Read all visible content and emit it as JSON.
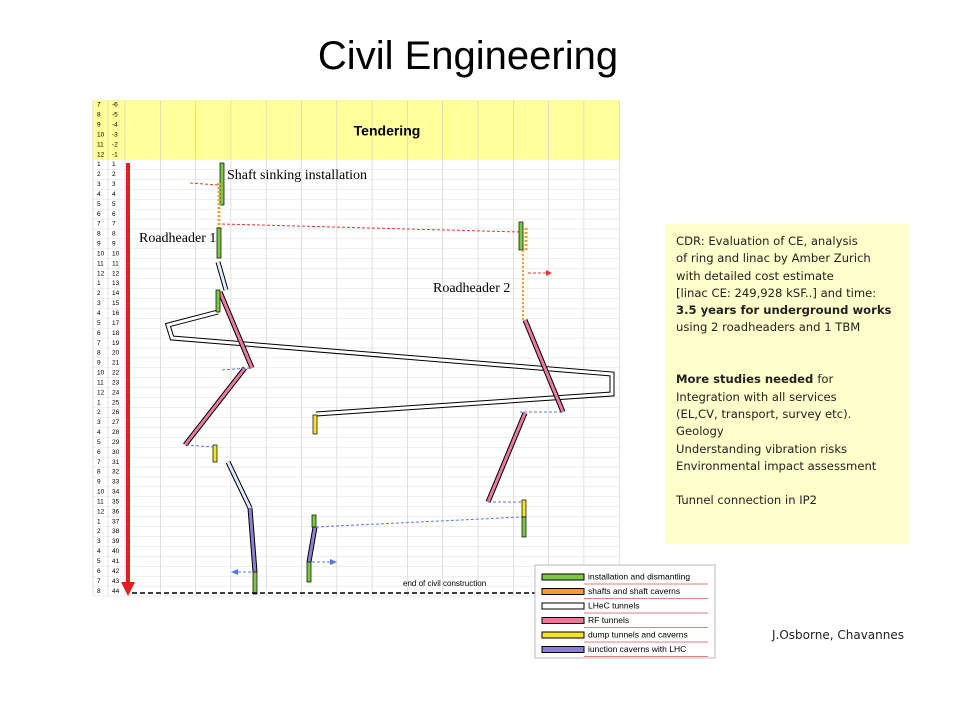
{
  "title": "Civil Engineering",
  "schedule": {
    "tendering_label": "Tendering",
    "rows": [
      {
        "month": "7",
        "index": "-6"
      },
      {
        "month": "8",
        "index": "-5"
      },
      {
        "month": "9",
        "index": "-4"
      },
      {
        "month": "10",
        "index": "-3"
      },
      {
        "month": "11",
        "index": "-2"
      },
      {
        "month": "12",
        "index": "-1"
      },
      {
        "month": "1",
        "index": "1"
      },
      {
        "month": "2",
        "index": "2"
      },
      {
        "month": "3",
        "index": "3"
      },
      {
        "month": "4",
        "index": "4"
      },
      {
        "month": "5",
        "index": "5"
      },
      {
        "month": "6",
        "index": "6"
      },
      {
        "month": "7",
        "index": "7"
      },
      {
        "month": "8",
        "index": "8"
      },
      {
        "month": "9",
        "index": "9"
      },
      {
        "month": "10",
        "index": "10"
      },
      {
        "month": "11",
        "index": "11"
      },
      {
        "month": "12",
        "index": "12"
      },
      {
        "month": "1",
        "index": "13"
      },
      {
        "month": "2",
        "index": "14"
      },
      {
        "month": "3",
        "index": "15"
      },
      {
        "month": "4",
        "index": "16"
      },
      {
        "month": "5",
        "index": "17"
      },
      {
        "month": "6",
        "index": "18"
      },
      {
        "month": "7",
        "index": "19"
      },
      {
        "month": "8",
        "index": "20"
      },
      {
        "month": "9",
        "index": "21"
      },
      {
        "month": "10",
        "index": "22"
      },
      {
        "month": "11",
        "index": "23"
      },
      {
        "month": "12",
        "index": "24"
      },
      {
        "month": "1",
        "index": "25"
      },
      {
        "month": "2",
        "index": "26"
      },
      {
        "month": "3",
        "index": "27"
      },
      {
        "month": "4",
        "index": "28"
      },
      {
        "month": "5",
        "index": "29"
      },
      {
        "month": "6",
        "index": "30"
      },
      {
        "month": "7",
        "index": "31"
      },
      {
        "month": "8",
        "index": "32"
      },
      {
        "month": "9",
        "index": "33"
      },
      {
        "month": "10",
        "index": "34"
      },
      {
        "month": "11",
        "index": "35"
      },
      {
        "month": "12",
        "index": "36"
      },
      {
        "month": "1",
        "index": "37"
      },
      {
        "month": "2",
        "index": "38"
      },
      {
        "month": "3",
        "index": "39"
      },
      {
        "month": "4",
        "index": "40"
      },
      {
        "month": "5",
        "index": "41"
      },
      {
        "month": "6",
        "index": "42"
      },
      {
        "month": "7",
        "index": "43"
      },
      {
        "month": "8",
        "index": "44"
      }
    ],
    "annotations": {
      "shaft": "Shaft sinking installation",
      "roadheader1": "Roadheader 1",
      "roadheader2": "Roadheader 2",
      "end": "end of civil construction"
    },
    "legend": [
      {
        "name": "installation and dismantling",
        "color": "#7ac943"
      },
      {
        "name": "shafts and shaft caverns",
        "color": "#f7a01c"
      },
      {
        "name": "LHeC tunnels",
        "color": "#ffffff"
      },
      {
        "name": "RF tunnels",
        "color": "#e87a9c"
      },
      {
        "name": "dump tunnels and caverns",
        "color": "#f5e52a"
      },
      {
        "name": "iunction caverns with LHC",
        "color": "#8e7fd6"
      }
    ]
  },
  "notes": [
    [
      {
        "text": "CDR: Evaluation of CE, analysis"
      }
    ],
    [
      {
        "text": "of ring and linac by Amber Zurich"
      }
    ],
    [
      {
        "text": "with detailed cost estimate"
      }
    ],
    [
      {
        "text": "[linac CE: 249,928 kSF..] and time:"
      }
    ],
    [
      {
        "text": "3.5 years for underground works",
        "bold": true
      }
    ],
    [
      {
        "text": "using 2 roadheaders and 1 TBM"
      }
    ],
    [],
    [],
    [
      {
        "text": "More studies needed",
        "bold": true
      },
      {
        "text": "for"
      }
    ],
    [
      {
        "text": "Integration with all services"
      }
    ],
    [
      {
        "text": "(EL,CV, transport, survey etc)."
      }
    ],
    [
      {
        "text": "Geology"
      }
    ],
    [
      {
        "text": "Understanding vibration risks"
      }
    ],
    [
      {
        "text": "Environmental impact assessment"
      }
    ],
    [],
    [
      {
        "text": "Tunnel connection in IP2"
      }
    ]
  ],
  "credit": "J.Osborne, Chavannes"
}
